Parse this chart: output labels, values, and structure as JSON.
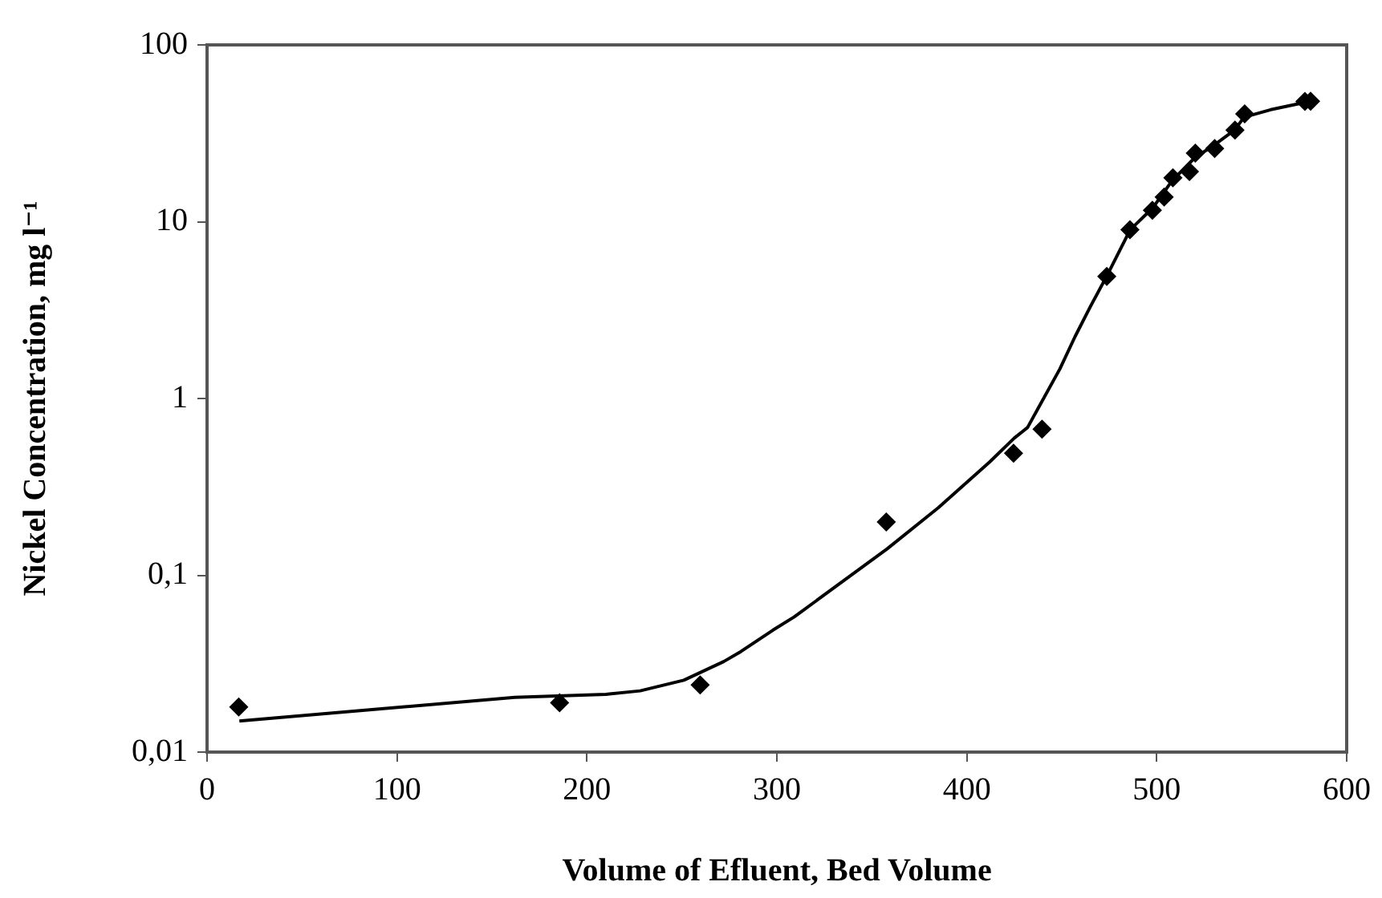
{
  "chart_data": {
    "type": "scatter",
    "xlabel": "Volume of Efluent, Bed Volume",
    "ylabel": "Nickel Concentration, mg l⁻¹",
    "log": "y",
    "xlim": [
      0,
      600
    ],
    "xticks": [
      0,
      100,
      200,
      300,
      400,
      500,
      600
    ],
    "ylim": [
      0.01,
      100
    ],
    "yticks": [
      {
        "value": 0.01,
        "label": "0,01"
      },
      {
        "value": 0.1,
        "label": "0,1"
      },
      1,
      10,
      100
    ],
    "series": [
      {
        "type": "scatter",
        "marker": "diamond",
        "color": "#000000",
        "x": [
          16.7,
          185.6,
          259.6,
          357.6,
          424.6,
          439.6,
          473.7,
          485.9,
          497.7,
          503.9,
          508.5,
          517.2,
          520.3,
          530.5,
          541.2,
          546.3,
          578,
          581
        ],
        "values": [
          0.018,
          0.019,
          0.024,
          0.2,
          0.49,
          0.67,
          4.9,
          9,
          11.6,
          13.8,
          17.7,
          19.2,
          24.4,
          25.9,
          33,
          40.7,
          47.9,
          48
        ]
      },
      {
        "type": "line",
        "marker": "none",
        "line_style": "solid",
        "color": "#000000",
        "x": [
          17,
          162,
          210,
          228,
          251,
          272,
          281,
          298,
          309,
          358,
          385,
          412,
          425,
          432,
          449,
          457,
          465,
          474,
          486,
          498,
          508,
          520,
          530,
          541,
          546,
          560,
          581
        ],
        "values": [
          0.015,
          0.0204,
          0.0212,
          0.0222,
          0.0255,
          0.0325,
          0.037,
          0.049,
          0.058,
          0.141,
          0.241,
          0.437,
          0.597,
          0.686,
          1.47,
          2.24,
          3.3,
          5,
          9,
          12,
          17,
          23,
          27,
          33,
          39,
          43,
          48
        ]
      }
    ]
  }
}
